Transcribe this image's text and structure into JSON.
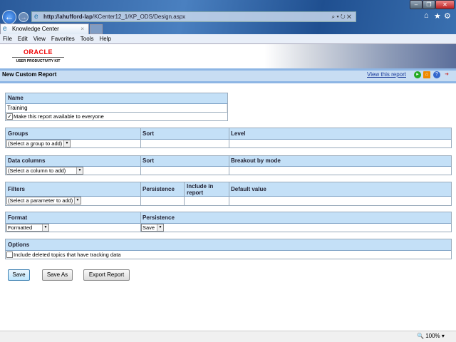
{
  "browser": {
    "url_host": "http://ahufford-lap",
    "url_path": "/KCenter12_1/KP_ODS/Design.aspx",
    "tab_title": "Knowledge Center",
    "menu": [
      "File",
      "Edit",
      "View",
      "Favorites",
      "Tools",
      "Help"
    ],
    "zoom": "100%"
  },
  "header": {
    "logo_text": "ORACLE",
    "logo_sub": "USER PRODUCTIVITY KIT",
    "page_title": "New Custom Report",
    "view_link": "View this report"
  },
  "name_section": {
    "header": "Name",
    "value": "Training",
    "checkbox_label": "Make this report available to everyone",
    "checked": true
  },
  "groups": {
    "headers": [
      "Groups",
      "Sort",
      "Level"
    ],
    "select": "(Select a group to add)"
  },
  "data_columns": {
    "headers": [
      "Data columns",
      "Sort",
      "Breakout by mode"
    ],
    "select": "(Select a column to add)"
  },
  "filters": {
    "headers": [
      "Filters",
      "Persistence",
      "Include in report",
      "Default value"
    ],
    "select": "(Select a parameter to add)"
  },
  "format": {
    "headers": [
      "Format",
      "Persistence"
    ],
    "format_value": "Formatted",
    "persistence_value": "Save"
  },
  "options": {
    "header": "Options",
    "checkbox_label": "Include deleted topics that have tracking data",
    "checked": false
  },
  "buttons": {
    "save": "Save",
    "save_as": "Save As",
    "export": "Export Report"
  }
}
